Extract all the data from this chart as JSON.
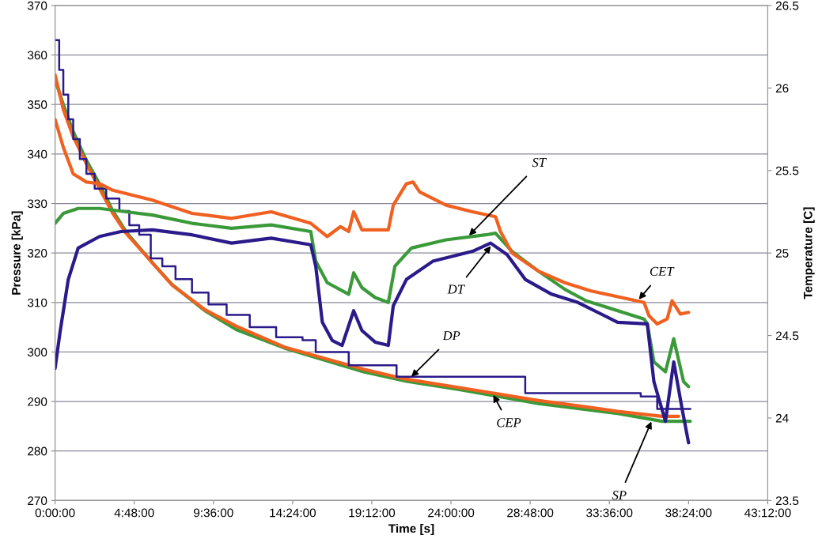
{
  "chart_data": {
    "type": "line",
    "xlabel": "Time [s]",
    "ylabel": "Pressure [kPa]",
    "y2label": "Temperature [C]",
    "xlim": [
      0,
      43.2
    ],
    "xticks": [
      {
        "value": 0,
        "label": "0:00:00"
      },
      {
        "value": 4.8,
        "label": "4:48:00"
      },
      {
        "value": 9.6,
        "label": "9:36:00"
      },
      {
        "value": 14.4,
        "label": "14:24:00"
      },
      {
        "value": 19.2,
        "label": "19:12:00"
      },
      {
        "value": 24,
        "label": "24:00:00"
      },
      {
        "value": 28.8,
        "label": "28:48:00"
      },
      {
        "value": 33.6,
        "label": "33:36:00"
      },
      {
        "value": 38.4,
        "label": "38:24:00"
      },
      {
        "value": 43.2,
        "label": "43:12:00"
      }
    ],
    "ylim": [
      270,
      370
    ],
    "yticks": [
      270,
      280,
      290,
      300,
      310,
      320,
      330,
      340,
      350,
      360,
      370
    ],
    "y2lim": [
      23.5,
      26.5
    ],
    "y2ticks": [
      23.5,
      24,
      24.5,
      25,
      25.5,
      26,
      26.5
    ],
    "grid": "y",
    "legend": false,
    "series": [
      {
        "name": "SP",
        "color": "#3a9a3a",
        "x": [
          0,
          0.5,
          1.1,
          1.9,
          2.7,
          3.5,
          4.3,
          5.9,
          7.1,
          9.1,
          11,
          13.9,
          17.1,
          18.7,
          21.3,
          24.5,
          29.3,
          34.1,
          36.8,
          38.5
        ],
        "values": [
          355,
          350,
          344.5,
          338.7,
          333.9,
          328.5,
          324.3,
          318,
          313.6,
          308.3,
          304.5,
          300.8,
          297.6,
          296,
          294.1,
          292.4,
          289.6,
          287.6,
          286,
          286
        ]
      },
      {
        "name": "CEP",
        "color": "#f06020",
        "x": [
          0,
          0.5,
          1.1,
          1.9,
          2.7,
          3.5,
          4.3,
          5.9,
          7.1,
          9.1,
          11,
          13.9,
          17.1,
          18.7,
          21.3,
          24.5,
          29.3,
          32,
          34.1,
          36.8,
          37.8
        ],
        "values": [
          356,
          349,
          343.5,
          338,
          333,
          328,
          324,
          318,
          313.5,
          308.5,
          305.2,
          301,
          298,
          296.5,
          294.5,
          292.8,
          290.2,
          289,
          288,
          287,
          287
        ]
      },
      {
        "name": "DP",
        "type": "step",
        "color": "#2a1a8a",
        "x": [
          0,
          0.25,
          0.5,
          0.8,
          1.1,
          1.5,
          1.9,
          2.4,
          3.1,
          3.9,
          4.5,
          5.1,
          5.8,
          6.5,
          7.3,
          8.3,
          9.3,
          10.4,
          11.8,
          13.4,
          15,
          15.8,
          17.8,
          20.7,
          28.5,
          35.5,
          36.5,
          38.5
        ],
        "values": [
          363,
          357,
          352,
          347,
          343,
          339,
          336,
          333,
          331,
          328.5,
          325.6,
          323.7,
          318.9,
          317.3,
          314.7,
          312,
          309.6,
          307.5,
          305,
          303,
          302.4,
          300,
          297.3,
          295,
          291.7,
          291,
          288.5,
          288.5
        ]
      },
      {
        "name": "ST",
        "axis": "y2",
        "color": "#3a9a3a",
        "x": [
          0,
          0.5,
          1.4,
          2.7,
          4.3,
          5.9,
          8.3,
          10.7,
          13.1,
          15.5,
          15.8,
          16.5,
          17.8,
          18.1,
          18.6,
          19.4,
          20.2,
          20.6,
          21.6,
          23.7,
          26.1,
          26.7,
          27.7,
          29.3,
          30.9,
          32.2,
          35.7,
          35.9,
          36.3,
          37,
          37.5,
          38.1,
          38.4
        ],
        "values": [
          25.18,
          25.24,
          25.27,
          25.27,
          25.25,
          25.23,
          25.18,
          25.15,
          25.17,
          25.13,
          24.95,
          24.82,
          24.75,
          24.88,
          24.79,
          24.73,
          24.7,
          24.92,
          25.03,
          25.08,
          25.11,
          25.12,
          25.01,
          24.89,
          24.78,
          24.71,
          24.6,
          24.57,
          24.34,
          24.28,
          24.48,
          24.22,
          24.19
        ]
      },
      {
        "name": "DT",
        "axis": "y2",
        "color": "#2a1a8a",
        "x": [
          0,
          0.3,
          0.8,
          1.4,
          2.7,
          4,
          5.9,
          8.3,
          10.7,
          13.1,
          15.5,
          15.8,
          16.2,
          16.8,
          17.4,
          18.1,
          18.6,
          19.4,
          20.2,
          20.5,
          21.3,
          22.9,
          25.3,
          26.4,
          27.4,
          28.5,
          30.1,
          31.7,
          34.1,
          35.9,
          36.3,
          37,
          37.5,
          38,
          38.4
        ],
        "values": [
          24.3,
          24.52,
          24.84,
          25.03,
          25.1,
          25.13,
          25.14,
          25.11,
          25.06,
          25.09,
          25.05,
          24.92,
          24.58,
          24.47,
          24.44,
          24.65,
          24.53,
          24.46,
          24.44,
          24.68,
          24.84,
          24.95,
          25.01,
          25.06,
          24.99,
          24.84,
          24.75,
          24.7,
          24.58,
          24.57,
          24.22,
          23.98,
          24.34,
          24.06,
          23.85
        ]
      },
      {
        "name": "CET",
        "axis": "y2",
        "color": "#f06020",
        "x": [
          0,
          0.5,
          1.1,
          1.9,
          2.7,
          3.5,
          5.9,
          8.3,
          10.7,
          13.1,
          15.5,
          16.5,
          17.3,
          17.8,
          18.1,
          18.6,
          20.2,
          20.5,
          21.3,
          21.7,
          22.1,
          23.7,
          25.3,
          26.7,
          27,
          27.7,
          29.3,
          30.9,
          32.5,
          35.7,
          36,
          36.5,
          37.1,
          37.4,
          37.9,
          38.4
        ],
        "values": [
          25.81,
          25.64,
          25.48,
          25.43,
          25.42,
          25.38,
          25.32,
          25.24,
          25.21,
          25.25,
          25.18,
          25.1,
          25.16,
          25.13,
          25.25,
          25.14,
          25.14,
          25.29,
          25.42,
          25.43,
          25.37,
          25.29,
          25.25,
          25.22,
          25.13,
          25.0,
          24.89,
          24.82,
          24.77,
          24.7,
          24.62,
          24.57,
          24.6,
          24.71,
          24.63,
          24.64
        ]
      }
    ]
  }
}
